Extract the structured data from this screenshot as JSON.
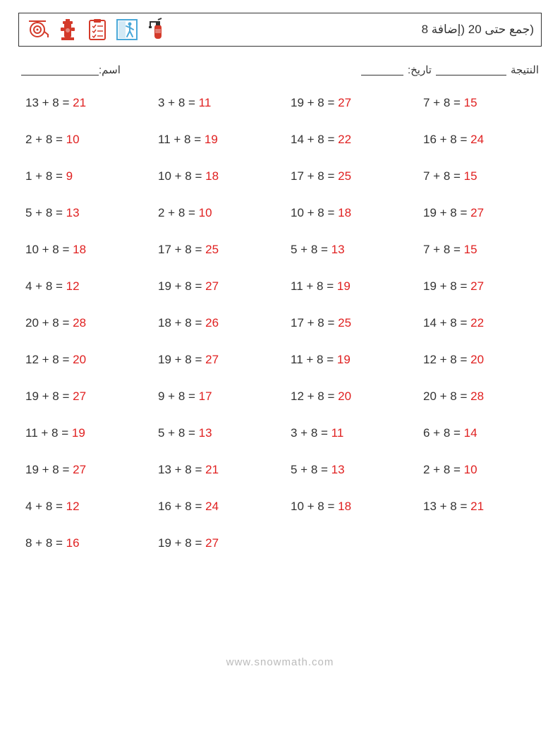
{
  "title": "(جمع حتى 20 (إضافة 8",
  "labels": {
    "name": "اسم:",
    "score": "النتيجة",
    "date": "تاريخ:"
  },
  "footer": "www.snowmath.com",
  "colors": {
    "answer": "#e02020",
    "text": "#333333",
    "footer": "#bbbbbb",
    "border": "#333333"
  },
  "icons": [
    {
      "name": "hose-reel"
    },
    {
      "name": "hydrant"
    },
    {
      "name": "checklist"
    },
    {
      "name": "exit-person"
    },
    {
      "name": "extinguisher"
    }
  ],
  "columns": 4,
  "rows": 13,
  "problems": [
    {
      "a": 13,
      "b": 8,
      "ans": 21
    },
    {
      "a": 3,
      "b": 8,
      "ans": 11
    },
    {
      "a": 19,
      "b": 8,
      "ans": 27
    },
    {
      "a": 7,
      "b": 8,
      "ans": 15
    },
    {
      "a": 2,
      "b": 8,
      "ans": 10
    },
    {
      "a": 11,
      "b": 8,
      "ans": 19
    },
    {
      "a": 14,
      "b": 8,
      "ans": 22
    },
    {
      "a": 16,
      "b": 8,
      "ans": 24
    },
    {
      "a": 1,
      "b": 8,
      "ans": 9
    },
    {
      "a": 10,
      "b": 8,
      "ans": 18
    },
    {
      "a": 17,
      "b": 8,
      "ans": 25
    },
    {
      "a": 7,
      "b": 8,
      "ans": 15
    },
    {
      "a": 5,
      "b": 8,
      "ans": 13
    },
    {
      "a": 2,
      "b": 8,
      "ans": 10
    },
    {
      "a": 10,
      "b": 8,
      "ans": 18
    },
    {
      "a": 19,
      "b": 8,
      "ans": 27
    },
    {
      "a": 10,
      "b": 8,
      "ans": 18
    },
    {
      "a": 17,
      "b": 8,
      "ans": 25
    },
    {
      "a": 5,
      "b": 8,
      "ans": 13
    },
    {
      "a": 7,
      "b": 8,
      "ans": 15
    },
    {
      "a": 4,
      "b": 8,
      "ans": 12
    },
    {
      "a": 19,
      "b": 8,
      "ans": 27
    },
    {
      "a": 11,
      "b": 8,
      "ans": 19
    },
    {
      "a": 19,
      "b": 8,
      "ans": 27
    },
    {
      "a": 20,
      "b": 8,
      "ans": 28
    },
    {
      "a": 18,
      "b": 8,
      "ans": 26
    },
    {
      "a": 17,
      "b": 8,
      "ans": 25
    },
    {
      "a": 14,
      "b": 8,
      "ans": 22
    },
    {
      "a": 12,
      "b": 8,
      "ans": 20
    },
    {
      "a": 19,
      "b": 8,
      "ans": 27
    },
    {
      "a": 11,
      "b": 8,
      "ans": 19
    },
    {
      "a": 12,
      "b": 8,
      "ans": 20
    },
    {
      "a": 19,
      "b": 8,
      "ans": 27
    },
    {
      "a": 9,
      "b": 8,
      "ans": 17
    },
    {
      "a": 12,
      "b": 8,
      "ans": 20
    },
    {
      "a": 20,
      "b": 8,
      "ans": 28
    },
    {
      "a": 11,
      "b": 8,
      "ans": 19
    },
    {
      "a": 5,
      "b": 8,
      "ans": 13
    },
    {
      "a": 3,
      "b": 8,
      "ans": 11
    },
    {
      "a": 6,
      "b": 8,
      "ans": 14
    },
    {
      "a": 19,
      "b": 8,
      "ans": 27
    },
    {
      "a": 13,
      "b": 8,
      "ans": 21
    },
    {
      "a": 5,
      "b": 8,
      "ans": 13
    },
    {
      "a": 2,
      "b": 8,
      "ans": 10
    },
    {
      "a": 4,
      "b": 8,
      "ans": 12
    },
    {
      "a": 16,
      "b": 8,
      "ans": 24
    },
    {
      "a": 10,
      "b": 8,
      "ans": 18
    },
    {
      "a": 13,
      "b": 8,
      "ans": 21
    },
    {
      "a": 8,
      "b": 8,
      "ans": 16
    },
    {
      "a": 19,
      "b": 8,
      "ans": 27
    }
  ]
}
